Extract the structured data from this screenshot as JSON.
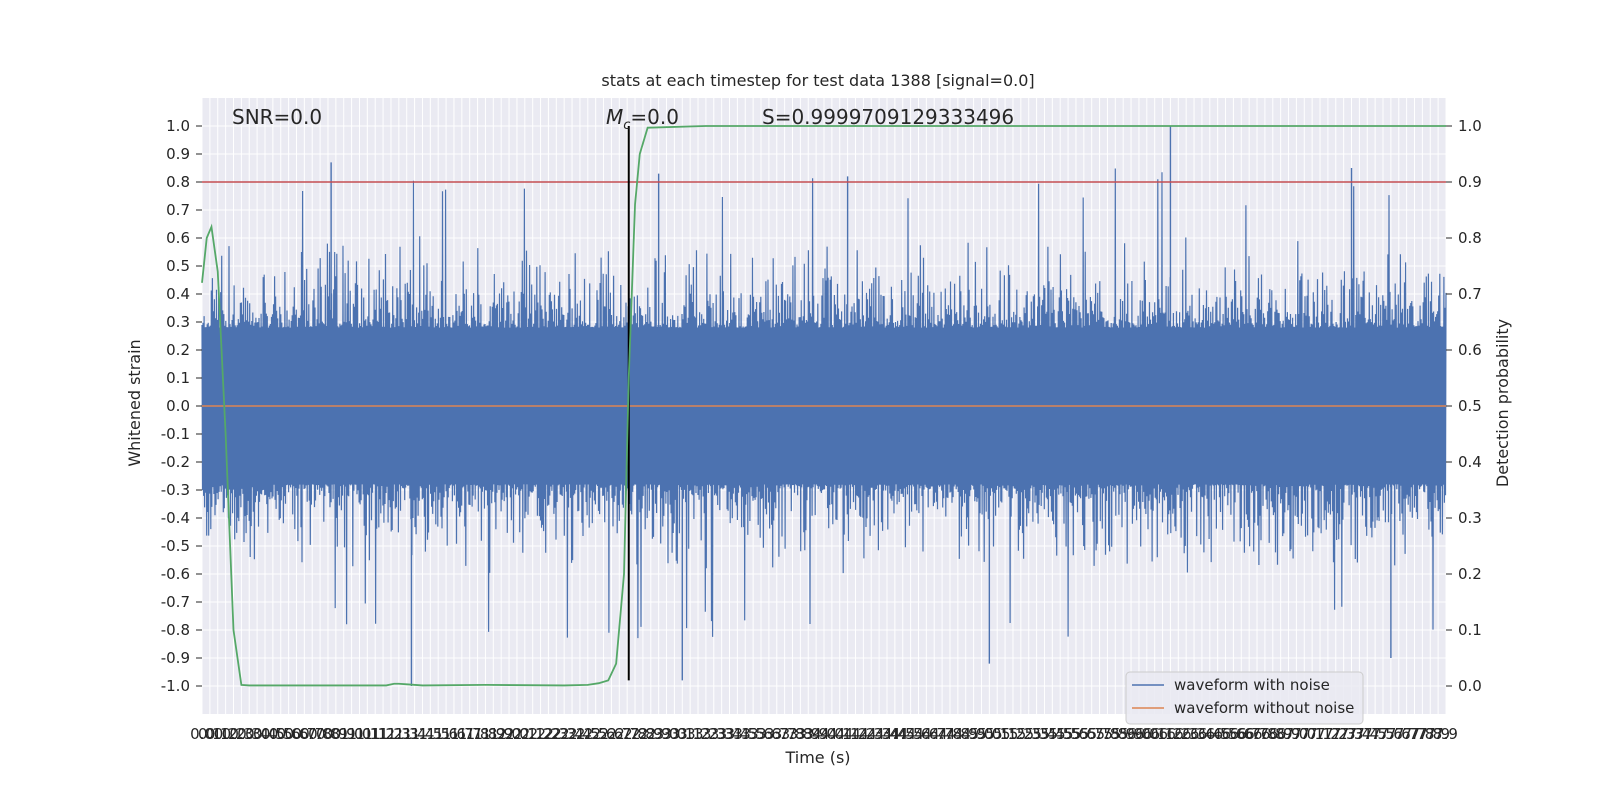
{
  "chart_data": {
    "type": "line",
    "title": "stats at each timestep for test data 1388 [signal=0.0]",
    "xlabel": "Time (s)",
    "ylabel_left": "Whitened strain",
    "ylabel_right": "Detection probability",
    "xlim": [
      0.0,
      7.9
    ],
    "ylim_left": [
      -1.1,
      1.1
    ],
    "ylim_right": [
      -0.05,
      1.05
    ],
    "x_tick_start": 0.0,
    "x_tick_step": 0.05,
    "x_tick_count": 159,
    "y_ticks_left": [
      "1.0",
      "0.9",
      "0.8",
      "0.7",
      "0.6",
      "0.5",
      "0.4",
      "0.3",
      "0.2",
      "0.1",
      "0.0",
      "-0.1",
      "-0.2",
      "-0.3",
      "-0.4",
      "-0.5",
      "-0.6",
      "-0.7",
      "-0.8",
      "-0.9",
      "-1.0"
    ],
    "y_ticks_right": [
      "1.0",
      "0.9",
      "0.8",
      "0.7",
      "0.6",
      "0.5",
      "0.4",
      "0.3",
      "0.2",
      "0.1",
      "0.0"
    ],
    "grid": true,
    "legend_position": "lower-right",
    "annotations": {
      "snr": "SNR=0.0",
      "mc_symbol": "M",
      "mc_sub": "c",
      "mc_value": "=0.0",
      "s": "S=0.9999709129333496"
    },
    "threshold": {
      "value": 0.9,
      "axis": "right",
      "color": "#c44e52"
    },
    "marker_line": {
      "x": 2.71,
      "y_from": -0.98,
      "y_to": 1.0,
      "color": "#000000"
    },
    "series": [
      {
        "name": "waveform with noise",
        "axis": "left",
        "color": "#4c72b0",
        "envelope_typical": 0.28,
        "envelope_peak": 0.62,
        "notable_peaks": [
          {
            "x": 0.82,
            "y": 0.87
          },
          {
            "x": 1.33,
            "y": -1.0
          },
          {
            "x": 3.05,
            "y": -0.98
          },
          {
            "x": 6.15,
            "y": 1.0
          },
          {
            "x": 5.0,
            "y": -0.92
          },
          {
            "x": 7.3,
            "y": 0.85
          },
          {
            "x": 7.55,
            "y": -0.9
          },
          {
            "x": 2.9,
            "y": 0.83
          },
          {
            "x": 4.1,
            "y": 0.82
          }
        ]
      },
      {
        "name": "waveform without noise",
        "axis": "left",
        "color": "#dd8452",
        "x": [
          0.0,
          7.9
        ],
        "y": [
          0.0,
          0.0
        ]
      },
      {
        "name": "",
        "axis": "right",
        "color": "#55a868",
        "x": [
          0.0,
          0.03,
          0.06,
          0.1,
          0.15,
          0.2,
          0.25,
          0.3,
          0.5,
          1.0,
          1.17,
          1.22,
          1.25,
          1.3,
          1.4,
          1.8,
          2.3,
          2.45,
          2.52,
          2.58,
          2.63,
          2.68,
          2.71,
          2.75,
          2.78,
          2.83,
          3.2,
          7.9
        ],
        "y": [
          0.72,
          0.8,
          0.82,
          0.74,
          0.45,
          0.1,
          0.002,
          0.001,
          0.001,
          0.001,
          0.001,
          0.004,
          0.004,
          0.003,
          0.001,
          0.002,
          0.001,
          0.002,
          0.005,
          0.01,
          0.04,
          0.2,
          0.55,
          0.86,
          0.95,
          0.997,
          1.0,
          1.0
        ]
      }
    ]
  }
}
